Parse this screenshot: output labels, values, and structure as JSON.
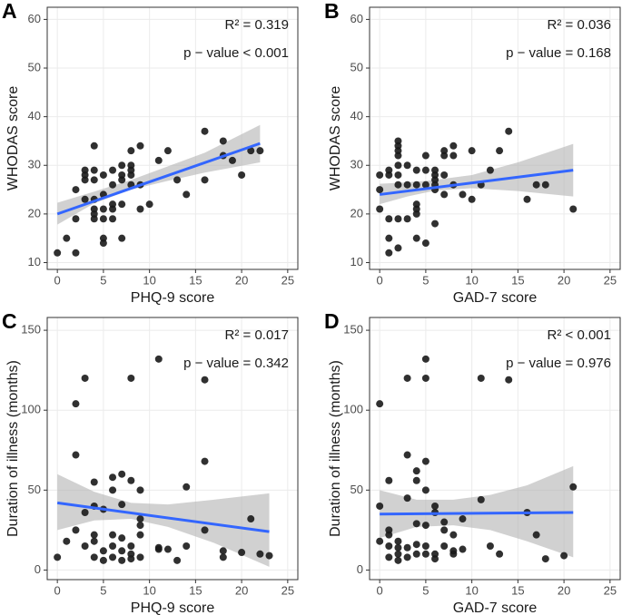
{
  "chart_data": [
    {
      "type": "scatter",
      "panel": "A",
      "xlabel": "PHQ-9 score",
      "ylabel": "WHODAS score",
      "annotations": [
        "R² = 0.319",
        "p − value < 0.001"
      ],
      "xlim": [
        -1.1,
        26.1
      ],
      "ylim": [
        8.6,
        62.5
      ],
      "xticks": [
        0,
        5,
        10,
        15,
        20,
        25
      ],
      "yticks": [
        10,
        20,
        30,
        40,
        50,
        60
      ],
      "grid": true,
      "color": "#1a1a1a",
      "line_color": "#3366ff",
      "band_color": "#b3b3b3",
      "x": [
        0,
        1,
        2,
        2,
        2,
        3,
        3,
        3,
        3,
        4,
        4,
        4,
        4,
        4,
        4,
        4,
        5,
        5,
        5,
        5,
        5,
        5,
        6,
        6,
        6,
        6,
        6,
        7,
        7,
        7,
        7,
        7,
        8,
        8,
        8,
        8,
        8,
        9,
        9,
        9,
        10,
        11,
        12,
        13,
        14,
        16,
        16,
        18,
        18,
        19,
        20,
        21,
        22
      ],
      "y": [
        12,
        15,
        12,
        19,
        25,
        23,
        27,
        28,
        29,
        27,
        29,
        34,
        19,
        20,
        23,
        21,
        19,
        21,
        24,
        28,
        15,
        14,
        22,
        21,
        26,
        29,
        19,
        15,
        22,
        27,
        28,
        30,
        26,
        28,
        29,
        30,
        33,
        34,
        21,
        26,
        22,
        31,
        33,
        27,
        24,
        37,
        27,
        35,
        32,
        31,
        28,
        33,
        33
      ],
      "fit": {
        "x": [
          0,
          22
        ],
        "y": [
          20,
          34.5
        ]
      },
      "band": {
        "x": [
          0,
          4,
          8,
          12,
          16,
          22
        ],
        "lower": [
          17.8,
          22.2,
          25,
          26.8,
          28.5,
          30.6
        ],
        "upper": [
          22.3,
          24.6,
          27,
          29.8,
          32.6,
          38.3
        ]
      }
    },
    {
      "type": "scatter",
      "panel": "B",
      "xlabel": "GAD-7 score",
      "ylabel": "WHODAS score",
      "annotations": [
        "R² = 0.036",
        "p − value = 0.168"
      ],
      "xlim": [
        -1.1,
        26.1
      ],
      "ylim": [
        8.6,
        62.5
      ],
      "xticks": [
        0,
        5,
        10,
        15,
        20,
        25
      ],
      "yticks": [
        10,
        20,
        30,
        40,
        50,
        60
      ],
      "grid": true,
      "color": "#1a1a1a",
      "line_color": "#3366ff",
      "band_color": "#b3b3b3",
      "x": [
        0,
        0,
        0,
        1,
        1,
        1,
        1,
        1,
        2,
        2,
        2,
        2,
        2,
        2,
        2,
        2,
        2,
        3,
        3,
        3,
        4,
        4,
        4,
        4,
        4,
        4,
        5,
        5,
        5,
        5,
        6,
        6,
        6,
        6,
        6,
        6,
        7,
        7,
        7,
        7,
        8,
        8,
        8,
        9,
        10,
        10,
        11,
        12,
        13,
        14,
        16,
        17,
        18,
        21
      ],
      "y": [
        28,
        25,
        21,
        29,
        28,
        19,
        15,
        12,
        35,
        34,
        33,
        32,
        30,
        28,
        26,
        19,
        13,
        26,
        19,
        30,
        29,
        26,
        22,
        21,
        20,
        15,
        32,
        29,
        26,
        14,
        29,
        28,
        27,
        26,
        25,
        18,
        33,
        32,
        28,
        24,
        34,
        32,
        26,
        24,
        33,
        23,
        26,
        29,
        33,
        37,
        23,
        26,
        26,
        21
      ],
      "fit": {
        "x": [
          0,
          21
        ],
        "y": [
          24,
          29
        ]
      },
      "band": {
        "x": [
          0,
          3,
          6,
          10,
          15,
          21
        ],
        "lower": [
          22,
          23.6,
          24.8,
          25.3,
          24.7,
          23.6
        ],
        "upper": [
          26.2,
          26.5,
          27,
          28,
          30.6,
          34.4
        ]
      }
    },
    {
      "type": "scatter",
      "panel": "C",
      "xlabel": "PHQ-9 score",
      "ylabel": "Duration of illness (months)",
      "annotations": [
        "R² = 0.017",
        "p − value = 0.342"
      ],
      "xlim": [
        -1.1,
        26.1
      ],
      "ylim": [
        -6,
        158
      ],
      "xticks": [
        0,
        5,
        10,
        15,
        20,
        25
      ],
      "yticks": [
        0,
        50,
        100,
        150
      ],
      "grid": true,
      "color": "#1a1a1a",
      "line_color": "#3366ff",
      "band_color": "#b3b3b3",
      "x": [
        0,
        1,
        2,
        2,
        2,
        3,
        3,
        3,
        4,
        4,
        4,
        4,
        4,
        5,
        5,
        5,
        6,
        6,
        6,
        6,
        6,
        7,
        7,
        7,
        7,
        7,
        8,
        8,
        8,
        8,
        8,
        9,
        9,
        9,
        9,
        9,
        11,
        11,
        11,
        12,
        13,
        14,
        14,
        16,
        16,
        16,
        18,
        18,
        20,
        21,
        22,
        23
      ],
      "y": [
        8,
        18,
        104,
        72,
        25,
        120,
        36,
        15,
        55,
        40,
        22,
        18,
        8,
        38,
        12,
        6,
        58,
        50,
        22,
        15,
        8,
        60,
        41,
        20,
        12,
        6,
        120,
        56,
        15,
        10,
        7,
        50,
        32,
        28,
        22,
        8,
        132,
        14,
        13,
        13,
        6,
        52,
        15,
        119,
        68,
        25,
        12,
        8,
        11,
        32,
        10,
        9
      ],
      "fit": {
        "x": [
          0,
          23
        ],
        "y": [
          42,
          24
        ]
      },
      "band": {
        "x": [
          0,
          4,
          8,
          12,
          17,
          23
        ],
        "lower": [
          25,
          31,
          32,
          27,
          17,
          2
        ],
        "upper": [
          60,
          49,
          42,
          41,
          44,
          48
        ]
      }
    },
    {
      "type": "scatter",
      "panel": "D",
      "xlabel": "GAD-7 score",
      "ylabel": "Duration of illness (months)",
      "annotations": [
        "R² < 0.001",
        "p − value = 0.976"
      ],
      "xlim": [
        -1.1,
        26.1
      ],
      "ylim": [
        -6,
        158
      ],
      "xticks": [
        0,
        5,
        10,
        15,
        20,
        25
      ],
      "yticks": [
        0,
        50,
        100,
        150
      ],
      "grid": true,
      "color": "#1a1a1a",
      "line_color": "#3366ff",
      "band_color": "#b3b3b3",
      "x": [
        0,
        0,
        0,
        1,
        1,
        1,
        1,
        1,
        2,
        2,
        2,
        2,
        3,
        3,
        3,
        3,
        3,
        4,
        4,
        4,
        4,
        4,
        5,
        5,
        5,
        5,
        5,
        5,
        5,
        6,
        6,
        6,
        6,
        7,
        7,
        7,
        8,
        8,
        8,
        9,
        9,
        11,
        11,
        12,
        13,
        14,
        16,
        17,
        18,
        20,
        21
      ],
      "y": [
        104,
        40,
        18,
        56,
        25,
        22,
        15,
        8,
        14,
        10,
        6,
        18,
        120,
        72,
        45,
        8,
        14,
        62,
        56,
        29,
        10,
        16,
        132,
        120,
        68,
        50,
        28,
        15,
        10,
        40,
        36,
        10,
        7,
        30,
        25,
        15,
        12,
        10,
        22,
        32,
        13,
        120,
        44,
        15,
        10,
        119,
        36,
        22,
        7,
        9,
        52
      ],
      "fit": {
        "x": [
          0,
          21
        ],
        "y": [
          35,
          36
        ]
      },
      "band": {
        "x": [
          0,
          4,
          8,
          12,
          16,
          21
        ],
        "lower": [
          20,
          27,
          28,
          25,
          18,
          8
        ],
        "upper": [
          50,
          44,
          44,
          47,
          53,
          65
        ]
      }
    }
  ]
}
